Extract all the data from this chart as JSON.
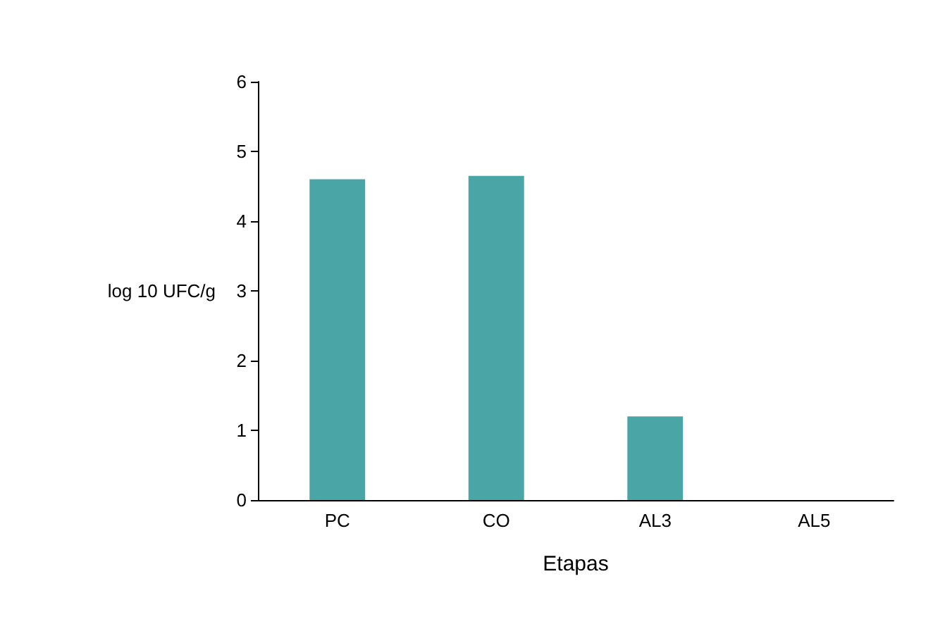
{
  "chart_data": {
    "type": "bar",
    "xlabel": "Etapas",
    "ylabel": "log 10 UFC/g",
    "categories": [
      "PC",
      "CO",
      "AL3",
      "AL5"
    ],
    "values": [
      4.6,
      4.65,
      1.2,
      0
    ],
    "color": "#4aa6a6",
    "ylim": [
      0,
      6
    ],
    "yticks": [
      0,
      1,
      2,
      3,
      4,
      5,
      6
    ],
    "grid": false
  }
}
